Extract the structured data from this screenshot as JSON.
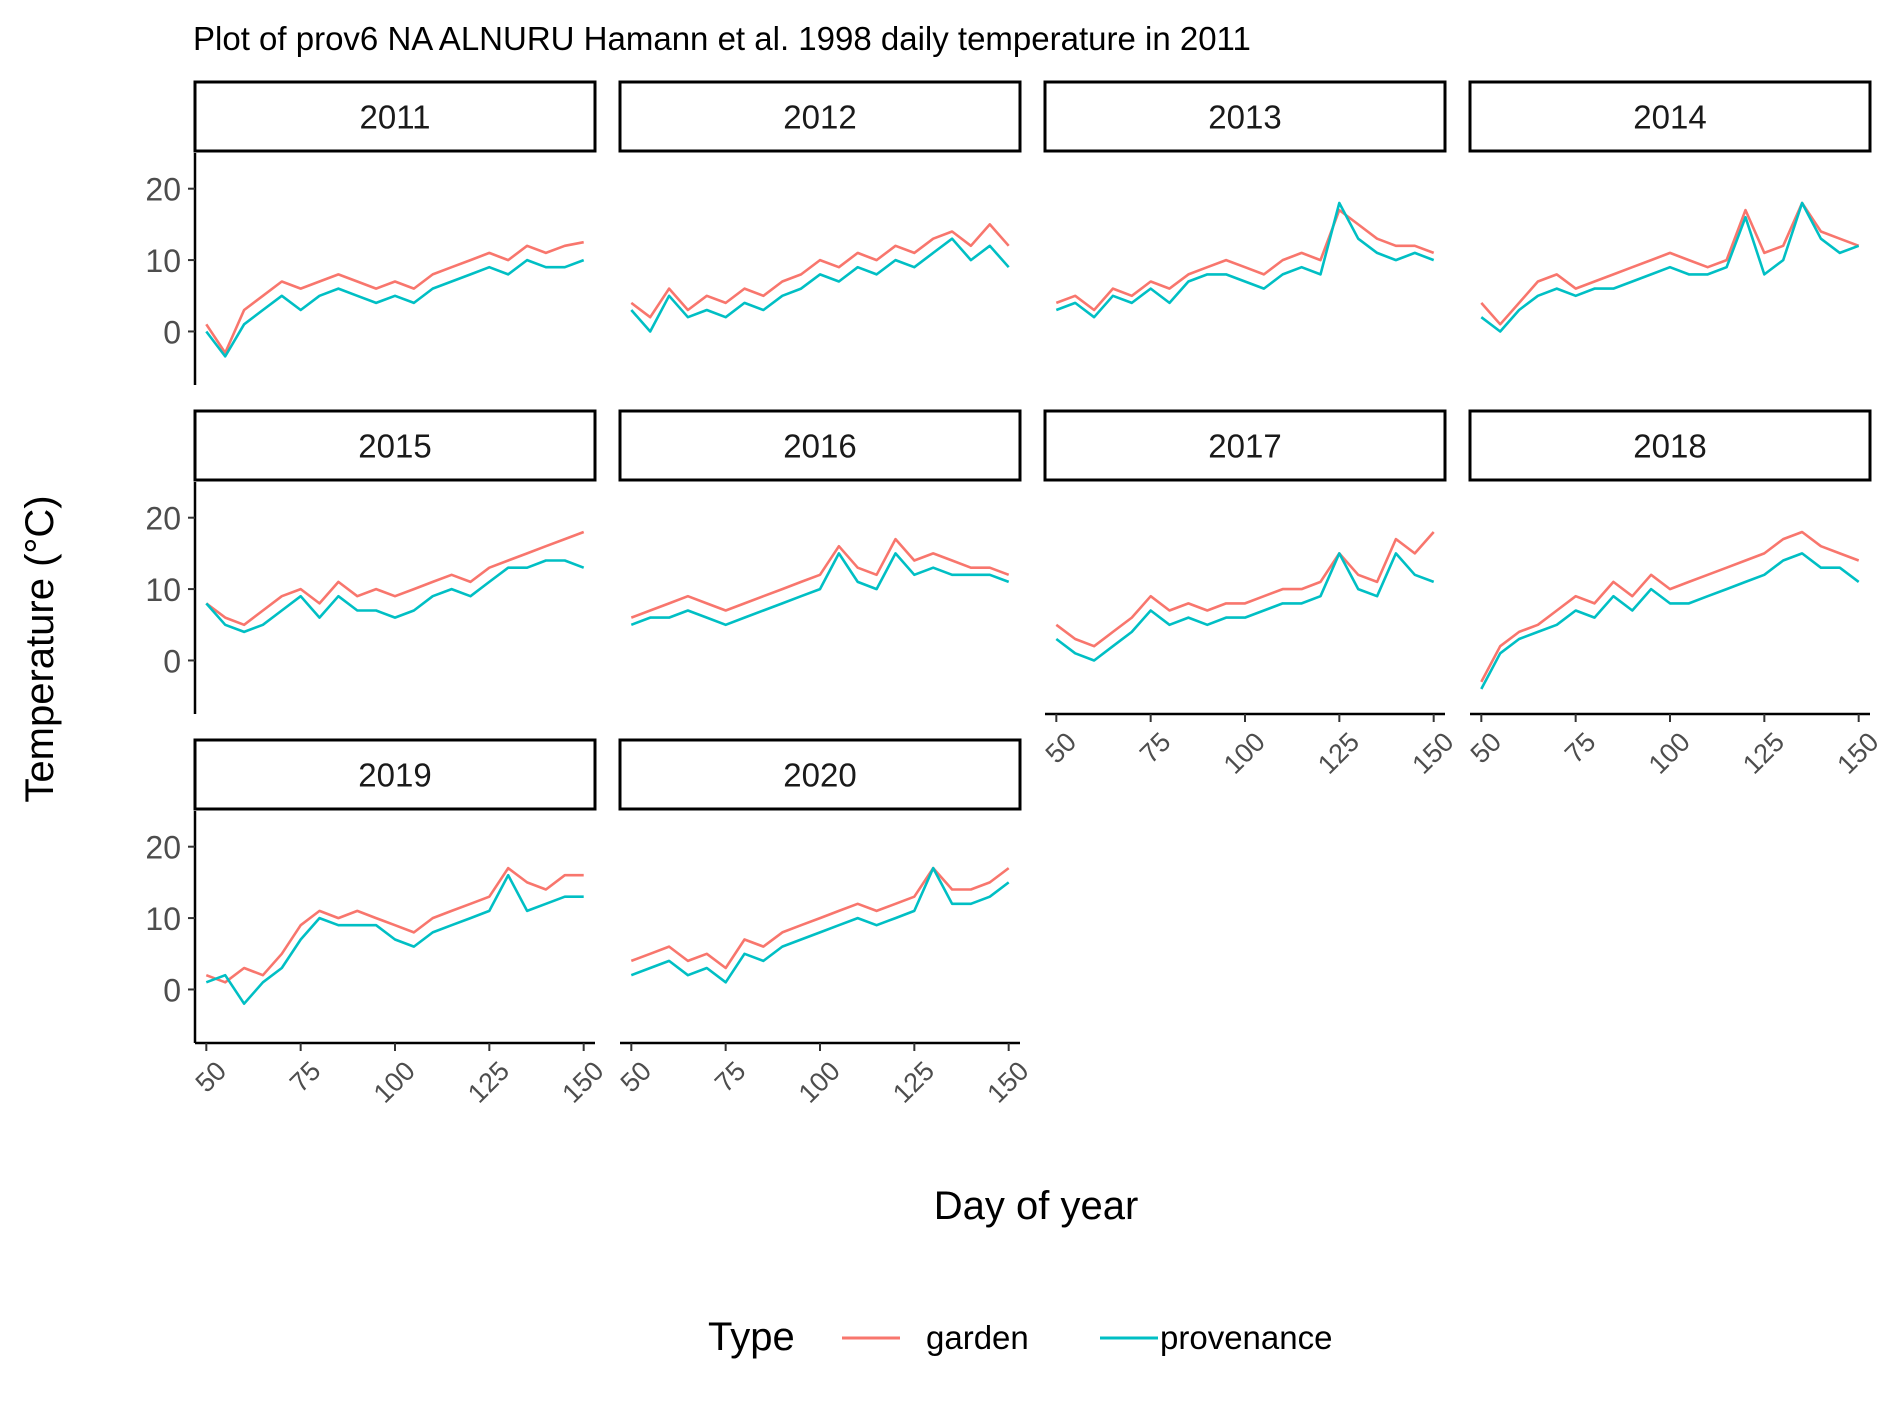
{
  "chart_data": {
    "type": "line",
    "title": "Plot of prov6 NA ALNURU Hamann et al. 1998 daily temperature in 2011",
    "xlabel": "Day of year",
    "ylabel": "Temperature (°C)",
    "xlim": [
      47,
      153
    ],
    "ylim": [
      -7.5,
      25
    ],
    "x_ticks": [
      50,
      75,
      100,
      125,
      150
    ],
    "y_ticks": [
      0,
      10,
      20
    ],
    "grid": false,
    "legend": {
      "title": "Type",
      "position": "bottom",
      "entries": [
        {
          "name": "garden",
          "color": "#F8766D"
        },
        {
          "name": "provenance",
          "color": "#00BFC4"
        }
      ]
    },
    "series_names": [
      "garden",
      "provenance"
    ],
    "panels": [
      {
        "label": "2011",
        "x": [
          50,
          55,
          60,
          65,
          70,
          75,
          80,
          85,
          90,
          95,
          100,
          105,
          110,
          115,
          120,
          125,
          130,
          135,
          140,
          145,
          150
        ],
        "garden": [
          1,
          -3,
          3,
          5,
          7,
          6,
          7,
          8,
          7,
          6,
          7,
          6,
          8,
          9,
          10,
          11,
          10,
          12,
          11,
          12,
          12.5
        ],
        "provenance": [
          0,
          -3.5,
          1,
          3,
          5,
          3,
          5,
          6,
          5,
          4,
          5,
          4,
          6,
          7,
          8,
          9,
          8,
          10,
          9,
          9,
          10
        ]
      },
      {
        "label": "2012",
        "x": [
          50,
          55,
          60,
          65,
          70,
          75,
          80,
          85,
          90,
          95,
          100,
          105,
          110,
          115,
          120,
          125,
          130,
          135,
          140,
          145,
          150
        ],
        "garden": [
          4,
          2,
          6,
          3,
          5,
          4,
          6,
          5,
          7,
          8,
          10,
          9,
          11,
          10,
          12,
          11,
          13,
          14,
          12,
          15,
          12
        ],
        "provenance": [
          3,
          0,
          5,
          2,
          3,
          2,
          4,
          3,
          5,
          6,
          8,
          7,
          9,
          8,
          10,
          9,
          11,
          13,
          10,
          12,
          9
        ]
      },
      {
        "label": "2013",
        "x": [
          50,
          55,
          60,
          65,
          70,
          75,
          80,
          85,
          90,
          95,
          100,
          105,
          110,
          115,
          120,
          125,
          130,
          135,
          140,
          145,
          150
        ],
        "garden": [
          4,
          5,
          3,
          6,
          5,
          7,
          6,
          8,
          9,
          10,
          9,
          8,
          10,
          11,
          10,
          17,
          15,
          13,
          12,
          12,
          11
        ],
        "provenance": [
          3,
          4,
          2,
          5,
          4,
          6,
          4,
          7,
          8,
          8,
          7,
          6,
          8,
          9,
          8,
          18,
          13,
          11,
          10,
          11,
          10
        ]
      },
      {
        "label": "2014",
        "x": [
          50,
          55,
          60,
          65,
          70,
          75,
          80,
          85,
          90,
          95,
          100,
          105,
          110,
          115,
          120,
          125,
          130,
          135,
          140,
          145,
          150
        ],
        "garden": [
          4,
          1,
          4,
          7,
          8,
          6,
          7,
          8,
          9,
          10,
          11,
          10,
          9,
          10,
          17,
          11,
          12,
          18,
          14,
          13,
          12
        ],
        "provenance": [
          2,
          0,
          3,
          5,
          6,
          5,
          6,
          6,
          7,
          8,
          9,
          8,
          8,
          9,
          16,
          8,
          10,
          18,
          13,
          11,
          12
        ]
      },
      {
        "label": "2015",
        "x": [
          50,
          55,
          60,
          65,
          70,
          75,
          80,
          85,
          90,
          95,
          100,
          105,
          110,
          115,
          120,
          125,
          130,
          135,
          140,
          145,
          150
        ],
        "garden": [
          8,
          6,
          5,
          7,
          9,
          10,
          8,
          11,
          9,
          10,
          9,
          10,
          11,
          12,
          11,
          13,
          14,
          15,
          16,
          17,
          18
        ],
        "provenance": [
          8,
          5,
          4,
          5,
          7,
          9,
          6,
          9,
          7,
          7,
          6,
          7,
          9,
          10,
          9,
          11,
          13,
          13,
          14,
          14,
          13
        ]
      },
      {
        "label": "2016",
        "x": [
          50,
          55,
          60,
          65,
          70,
          75,
          80,
          85,
          90,
          95,
          100,
          105,
          110,
          115,
          120,
          125,
          130,
          135,
          140,
          145,
          150
        ],
        "garden": [
          6,
          7,
          8,
          9,
          8,
          7,
          8,
          9,
          10,
          11,
          12,
          16,
          13,
          12,
          17,
          14,
          15,
          14,
          13,
          13,
          12
        ],
        "provenance": [
          5,
          6,
          6,
          7,
          6,
          5,
          6,
          7,
          8,
          9,
          10,
          15,
          11,
          10,
          15,
          12,
          13,
          12,
          12,
          12,
          11
        ]
      },
      {
        "label": "2017",
        "x": [
          50,
          55,
          60,
          65,
          70,
          75,
          80,
          85,
          90,
          95,
          100,
          105,
          110,
          115,
          120,
          125,
          130,
          135,
          140,
          145,
          150
        ],
        "garden": [
          5,
          3,
          2,
          4,
          6,
          9,
          7,
          8,
          7,
          8,
          8,
          9,
          10,
          10,
          11,
          15,
          12,
          11,
          17,
          15,
          18
        ],
        "provenance": [
          3,
          1,
          0,
          2,
          4,
          7,
          5,
          6,
          5,
          6,
          6,
          7,
          8,
          8,
          9,
          15,
          10,
          9,
          15,
          12,
          11
        ]
      },
      {
        "label": "2018",
        "x": [
          50,
          55,
          60,
          65,
          70,
          75,
          80,
          85,
          90,
          95,
          100,
          105,
          110,
          115,
          120,
          125,
          130,
          135,
          140,
          145,
          150
        ],
        "garden": [
          -3,
          2,
          4,
          5,
          7,
          9,
          8,
          11,
          9,
          12,
          10,
          11,
          12,
          13,
          14,
          15,
          17,
          18,
          16,
          15,
          14
        ],
        "provenance": [
          -4,
          1,
          3,
          4,
          5,
          7,
          6,
          9,
          7,
          10,
          8,
          8,
          9,
          10,
          11,
          12,
          14,
          15,
          13,
          13,
          11
        ]
      },
      {
        "label": "2019",
        "x": [
          50,
          55,
          60,
          65,
          70,
          75,
          80,
          85,
          90,
          95,
          100,
          105,
          110,
          115,
          120,
          125,
          130,
          135,
          140,
          145,
          150
        ],
        "garden": [
          2,
          1,
          3,
          2,
          5,
          9,
          11,
          10,
          11,
          10,
          9,
          8,
          10,
          11,
          12,
          13,
          17,
          15,
          14,
          16,
          16
        ],
        "provenance": [
          1,
          2,
          -2,
          1,
          3,
          7,
          10,
          9,
          9,
          9,
          7,
          6,
          8,
          9,
          10,
          11,
          16,
          11,
          12,
          13,
          13
        ]
      },
      {
        "label": "2020",
        "x": [
          50,
          55,
          60,
          65,
          70,
          75,
          80,
          85,
          90,
          95,
          100,
          105,
          110,
          115,
          120,
          125,
          130,
          135,
          140,
          145,
          150
        ],
        "garden": [
          4,
          5,
          6,
          4,
          5,
          3,
          7,
          6,
          8,
          9,
          10,
          11,
          12,
          11,
          12,
          13,
          17,
          14,
          14,
          15,
          17
        ],
        "provenance": [
          2,
          3,
          4,
          2,
          3,
          1,
          5,
          4,
          6,
          7,
          8,
          9,
          10,
          9,
          10,
          11,
          17,
          12,
          12,
          13,
          15
        ]
      }
    ]
  }
}
